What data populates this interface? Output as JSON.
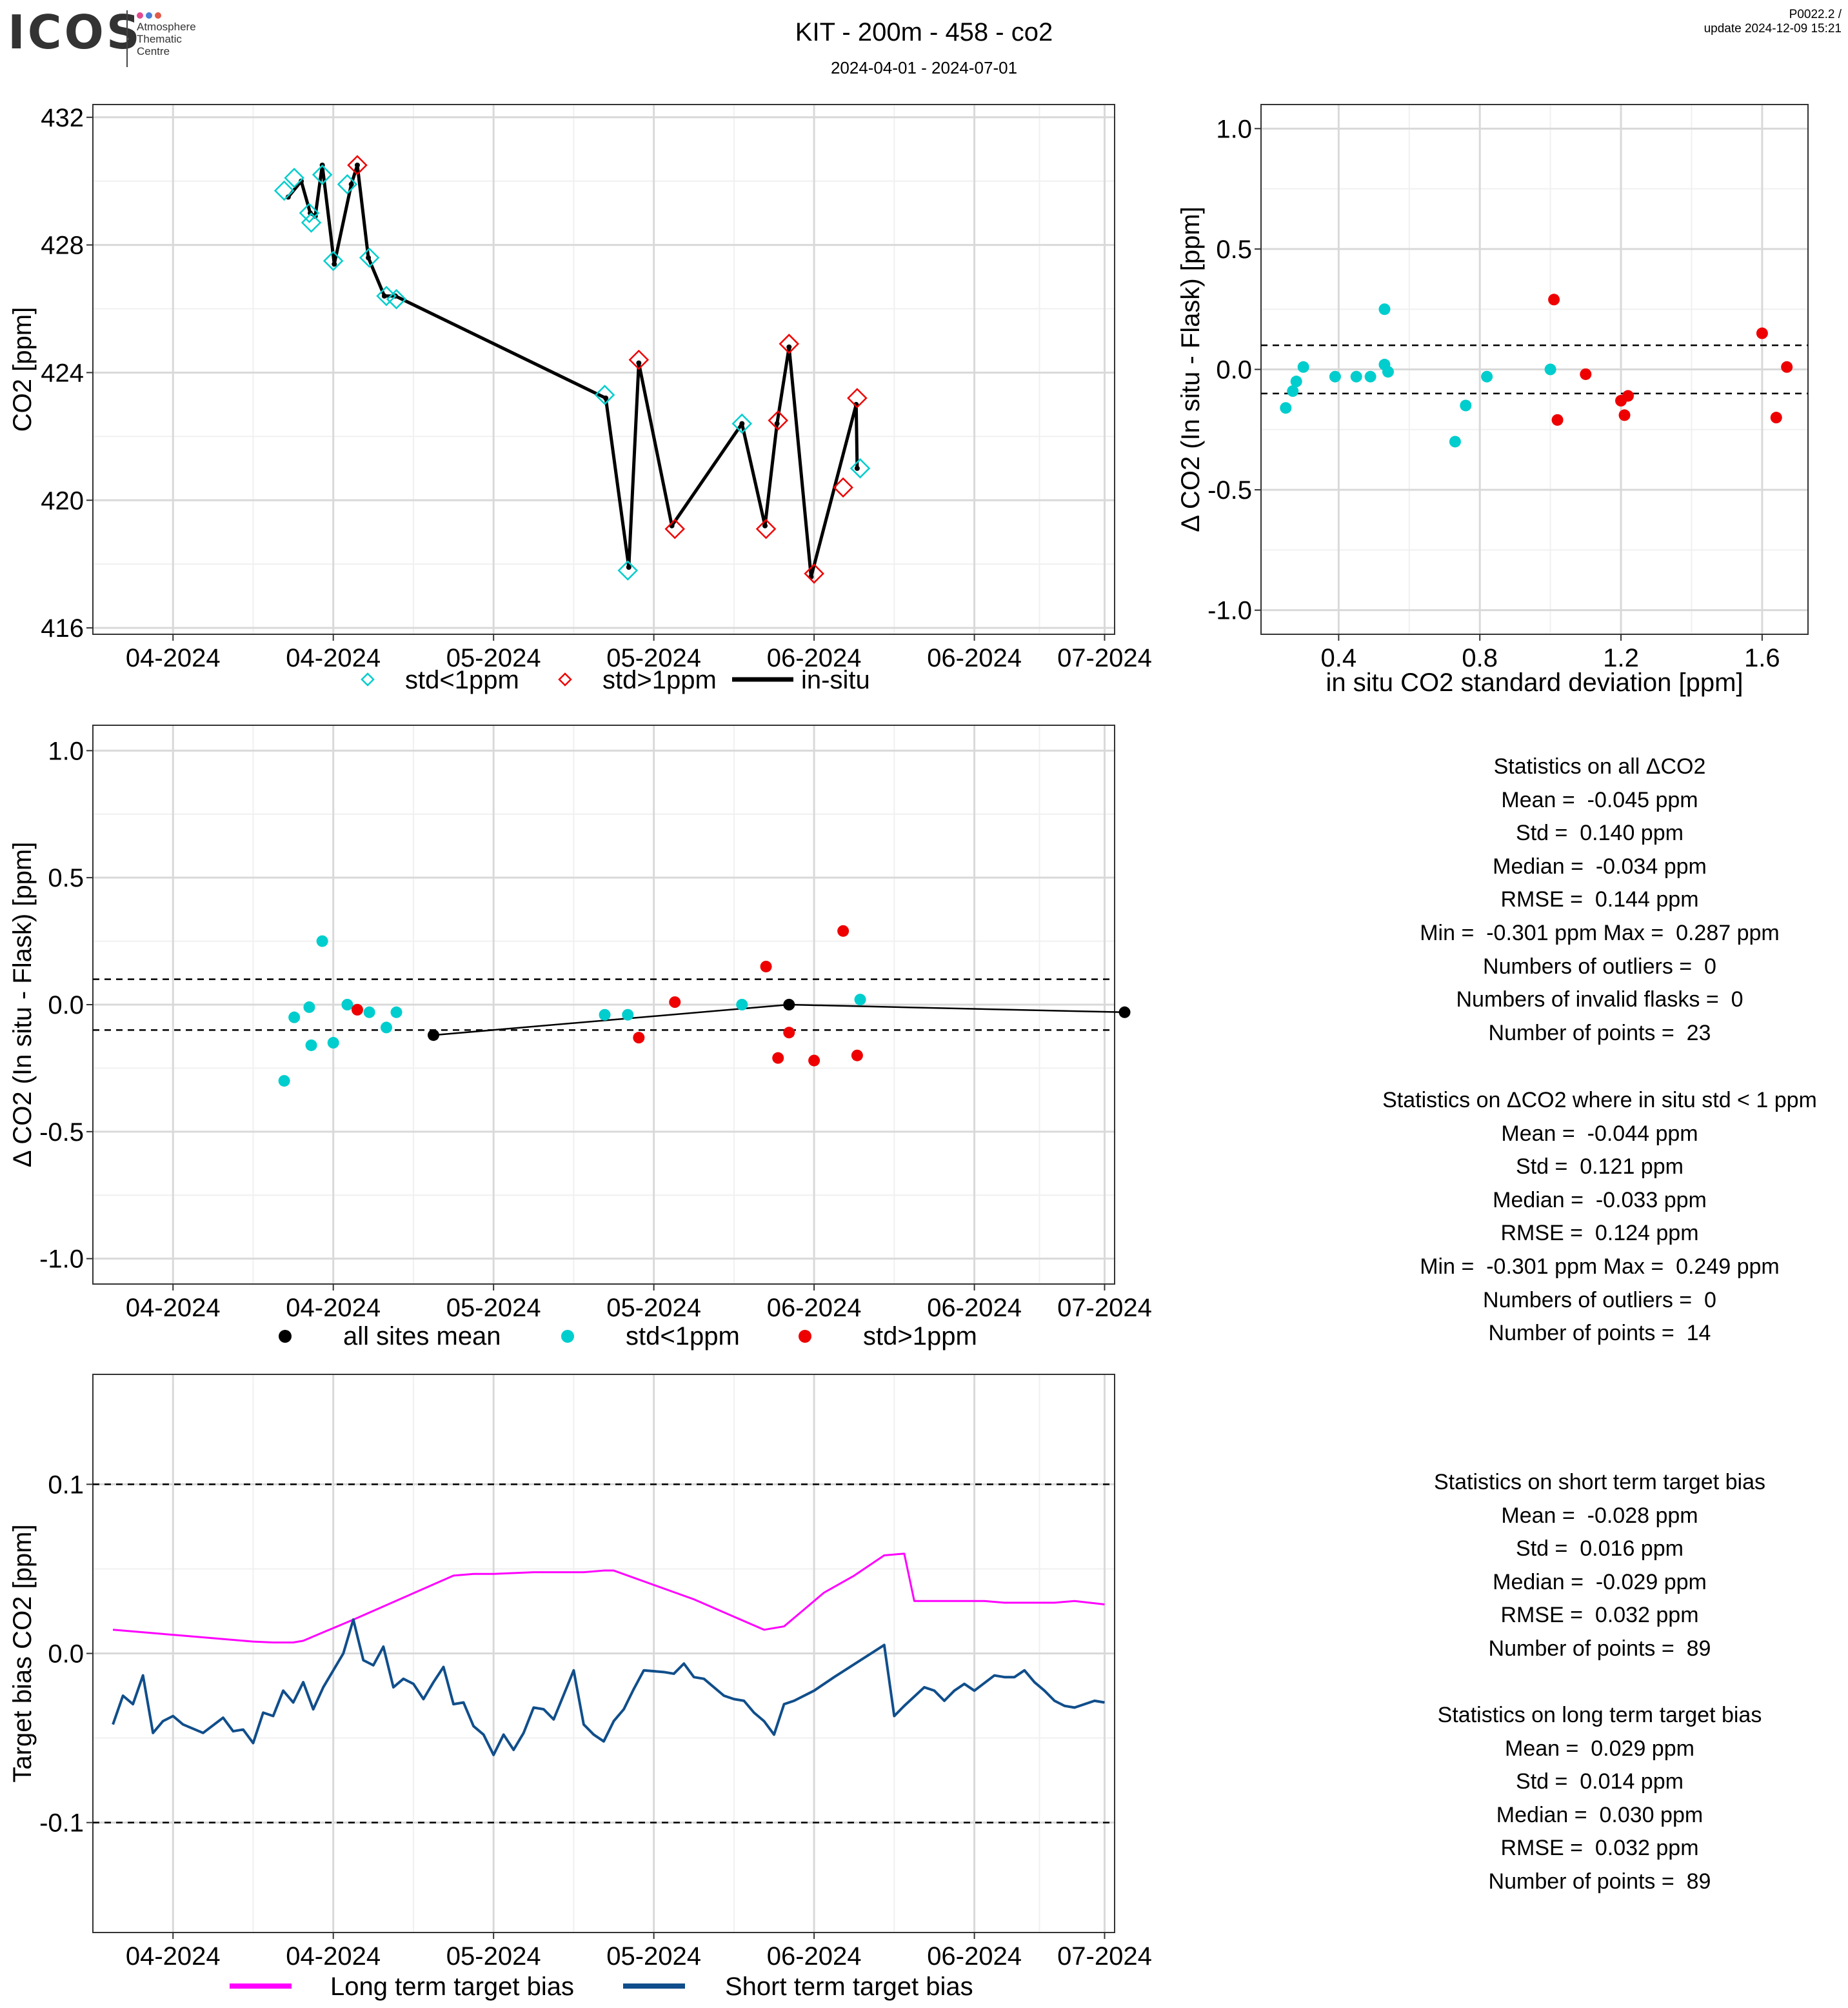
{
  "header": {
    "logo_text": "ICOS",
    "logo_subtitle": [
      "Atmosphere",
      "Thematic",
      "Centre"
    ],
    "title": "KIT - 200m - 458 - co2",
    "subtitle": "2024-04-01 - 2024-07-01",
    "version": "P0022.2 /",
    "update": "update  2024-12-09 15:21"
  },
  "colors": {
    "cyan": "#00CDCD",
    "red": "#EE0000",
    "magenta": "#FF00FF",
    "navy": "#104E8B",
    "black": "#000000",
    "grid_major": "#D9D9D9",
    "grid_minor": "#F0F0F0"
  },
  "chart_data": [
    {
      "id": "timeseries",
      "type": "line",
      "ylabel": "CO2 [ppm]",
      "xlabel": "",
      "xlim": [
        -31,
        71
      ],
      "ylim": [
        415.8,
        432.4
      ],
      "yticks": [
        416,
        420,
        424,
        428,
        432
      ],
      "xticks": [
        {
          "x": -23,
          "label": "04-2024"
        },
        {
          "x": -7,
          "label": "04-2024"
        },
        {
          "x": 9,
          "label": "05-2024"
        },
        {
          "x": 25,
          "label": "05-2024"
        },
        {
          "x": 41,
          "label": "06-2024"
        },
        {
          "x": 57,
          "label": "06-2024"
        },
        {
          "x": 70,
          "label": "07-2024"
        }
      ],
      "legend": [
        {
          "label": "std<1ppm",
          "marker": "diamond-open",
          "color": "#00CDCD"
        },
        {
          "label": "std>1ppm",
          "marker": "diamond-open",
          "color": "#EE0000"
        },
        {
          "label": "in-situ",
          "marker": "line",
          "color": "#000000"
        }
      ],
      "legend_position": "bottom",
      "insitu": {
        "x": [
          -11.5,
          -10.2,
          -9.3,
          -8.8,
          -8.1,
          -6.9,
          -5.2,
          -4.6,
          -3.5,
          -1.9,
          -0.8,
          20.2,
          22.5,
          23.5,
          26.8,
          33.8,
          36.1,
          37.3,
          38.5,
          40.7,
          45.2,
          45.3
        ],
        "y": [
          429.5,
          430.0,
          429.0,
          428.9,
          430.5,
          427.4,
          429.9,
          430.5,
          427.6,
          426.4,
          426.4,
          423.2,
          417.9,
          424.3,
          419.2,
          422.4,
          419.2,
          422.4,
          424.8,
          417.6,
          423.0,
          421.0
        ]
      },
      "series": [
        {
          "name": "std<1ppm",
          "x": [
            -11.9,
            -10.9,
            -9.4,
            -9.2,
            -8.1,
            -7.0,
            -5.6,
            -3.4,
            -1.7,
            -0.7,
            20.1,
            22.4,
            33.8,
            45.6
          ],
          "y": [
            429.7,
            430.1,
            429.0,
            428.7,
            430.2,
            427.5,
            429.9,
            427.6,
            426.4,
            426.3,
            423.3,
            417.8,
            422.4,
            421.0
          ]
        },
        {
          "name": "std>1ppm",
          "x": [
            -4.6,
            23.5,
            27.1,
            36.2,
            37.4,
            38.5,
            41.0,
            43.9,
            45.3
          ],
          "y": [
            430.5,
            424.4,
            419.1,
            419.1,
            422.5,
            424.9,
            417.7,
            420.4,
            423.2
          ]
        }
      ]
    },
    {
      "id": "std_scatter",
      "type": "scatter",
      "xlabel": "in situ CO2 standard deviation [ppm]",
      "ylabel": "Δ CO2 (In situ - Flask) [ppm]",
      "xlim": [
        0.18,
        1.73
      ],
      "ylim": [
        -1.1,
        1.1
      ],
      "xticks": [
        0.4,
        0.8,
        1.2,
        1.6
      ],
      "yticks": [
        -1.0,
        -0.5,
        0.0,
        0.5,
        1.0
      ],
      "hlines": [
        0.1,
        -0.1
      ],
      "series": [
        {
          "name": "std<1ppm",
          "x": [
            0.25,
            0.27,
            0.28,
            0.3,
            0.39,
            0.45,
            0.49,
            0.53,
            0.53,
            0.54,
            0.73,
            0.76,
            0.82,
            1.0
          ],
          "y": [
            -0.16,
            -0.09,
            -0.05,
            0.01,
            -0.03,
            -0.03,
            -0.03,
            0.02,
            0.25,
            -0.01,
            -0.3,
            -0.15,
            -0.03,
            0.0
          ]
        },
        {
          "name": "std>1ppm",
          "x": [
            1.01,
            1.02,
            1.1,
            1.2,
            1.21,
            1.22,
            1.6,
            1.64,
            1.67
          ],
          "y": [
            0.29,
            -0.21,
            -0.02,
            -0.13,
            -0.19,
            -0.11,
            0.15,
            -0.2,
            0.01
          ]
        }
      ]
    },
    {
      "id": "delta_time",
      "type": "scatter",
      "ylabel": "Δ CO2 (In situ - Flask) [ppm]",
      "xlabel": "",
      "xlim": [
        -31,
        71
      ],
      "ylim": [
        -1.1,
        1.1
      ],
      "yticks": [
        -1.0,
        -0.5,
        0.0,
        0.5,
        1.0
      ],
      "hlines": [
        0.1,
        -0.1
      ],
      "xticks": [
        {
          "x": -23,
          "label": "04-2024"
        },
        {
          "x": -7,
          "label": "04-2024"
        },
        {
          "x": 9,
          "label": "05-2024"
        },
        {
          "x": 25,
          "label": "05-2024"
        },
        {
          "x": 41,
          "label": "06-2024"
        },
        {
          "x": 57,
          "label": "06-2024"
        },
        {
          "x": 70,
          "label": "07-2024"
        }
      ],
      "legend": [
        {
          "label": "all sites mean",
          "marker": "dot",
          "color": "#000000"
        },
        {
          "label": "std<1ppm",
          "marker": "dot",
          "color": "#00CDCD"
        },
        {
          "label": "std>1ppm",
          "marker": "dot",
          "color": "#EE0000"
        }
      ],
      "legend_position": "bottom",
      "series": [
        {
          "name": "all sites mean",
          "x": [
            3.0,
            38.5,
            72.0
          ],
          "y": [
            -0.12,
            0.0,
            -0.03
          ]
        },
        {
          "name": "std<1ppm",
          "x": [
            -11.9,
            -10.9,
            -9.4,
            -9.2,
            -8.1,
            -7.0,
            -5.6,
            -3.4,
            -1.7,
            -0.7,
            20.1,
            22.4,
            33.8,
            45.6
          ],
          "y": [
            -0.3,
            -0.05,
            -0.01,
            -0.16,
            0.25,
            -0.15,
            0.0,
            -0.03,
            -0.09,
            -0.03,
            -0.04,
            -0.04,
            0.0,
            0.02
          ]
        },
        {
          "name": "std>1ppm",
          "x": [
            -4.6,
            23.5,
            27.1,
            36.2,
            37.4,
            38.5,
            41.0,
            43.9,
            45.3
          ],
          "y": [
            -0.02,
            -0.13,
            0.01,
            0.15,
            -0.21,
            -0.11,
            -0.22,
            0.29,
            -0.2
          ]
        }
      ]
    },
    {
      "id": "target_bias",
      "type": "line",
      "ylabel": "Target bias CO2 [ppm]",
      "xlabel": "",
      "xlim": [
        -31,
        71
      ],
      "ylim": [
        -0.165,
        0.165
      ],
      "yticks": [
        -0.1,
        0.0,
        0.1
      ],
      "hlines": [
        0.1,
        -0.1
      ],
      "xticks": [
        {
          "x": -23,
          "label": "04-2024"
        },
        {
          "x": -7,
          "label": "04-2024"
        },
        {
          "x": 9,
          "label": "05-2024"
        },
        {
          "x": 25,
          "label": "05-2024"
        },
        {
          "x": 41,
          "label": "06-2024"
        },
        {
          "x": 57,
          "label": "06-2024"
        },
        {
          "x": 70,
          "label": "07-2024"
        }
      ],
      "legend": [
        {
          "label": "Long term target bias",
          "marker": "line",
          "color": "#FF00FF"
        },
        {
          "label": "Short term target bias",
          "marker": "line",
          "color": "#104E8B"
        }
      ],
      "legend_position": "bottom",
      "series": [
        {
          "name": "Long term target bias",
          "x": [
            -29,
            -27,
            -25,
            -23,
            -21,
            -19,
            -17,
            -15,
            -13,
            -11,
            -10,
            -9,
            -5,
            0,
            5,
            7,
            9,
            13,
            18,
            20,
            21,
            29,
            36,
            38,
            40,
            42,
            45,
            48,
            50,
            51,
            52,
            55,
            58,
            60,
            62,
            65,
            67,
            70
          ],
          "y": [
            0.014,
            0.013,
            0.012,
            0.011,
            0.01,
            0.009,
            0.008,
            0.007,
            0.0065,
            0.0065,
            0.0075,
            0.01,
            0.02,
            0.033,
            0.046,
            0.047,
            0.047,
            0.048,
            0.048,
            0.049,
            0.049,
            0.032,
            0.014,
            0.016,
            0.026,
            0.036,
            0.046,
            0.058,
            0.059,
            0.031,
            0.031,
            0.031,
            0.031,
            0.03,
            0.03,
            0.03,
            0.031,
            0.029
          ]
        },
        {
          "name": "Short term target bias",
          "x": [
            -29,
            -28,
            -27,
            -26,
            -25,
            -24,
            -23,
            -22,
            -20,
            -18,
            -17,
            -16,
            -15,
            -14,
            -13,
            -12,
            -11,
            -10,
            -9,
            -8,
            -6,
            -5,
            -4,
            -3,
            -2,
            -1,
            0,
            1,
            2,
            3,
            4,
            5,
            6,
            7,
            8,
            9,
            10,
            11,
            12,
            13,
            14,
            15,
            17,
            18,
            19,
            20,
            21,
            22,
            23,
            24,
            26,
            27,
            28,
            29,
            30,
            31,
            32,
            33,
            34,
            35,
            36,
            37,
            38,
            39,
            41,
            42,
            43,
            48,
            49,
            50,
            52,
            53,
            54,
            55,
            56,
            57,
            59,
            60,
            61,
            62,
            63,
            64,
            65,
            66,
            67,
            69,
            70
          ],
          "y": [
            -0.042,
            -0.025,
            -0.03,
            -0.013,
            -0.047,
            -0.04,
            -0.037,
            -0.042,
            -0.047,
            -0.038,
            -0.046,
            -0.045,
            -0.053,
            -0.035,
            -0.037,
            -0.022,
            -0.029,
            -0.017,
            -0.033,
            -0.02,
            0.0,
            0.02,
            -0.004,
            -0.007,
            0.004,
            -0.02,
            -0.015,
            -0.018,
            -0.027,
            -0.017,
            -0.008,
            -0.03,
            -0.029,
            -0.043,
            -0.048,
            -0.06,
            -0.048,
            -0.057,
            -0.047,
            -0.032,
            -0.033,
            -0.039,
            -0.01,
            -0.042,
            -0.048,
            -0.052,
            -0.04,
            -0.033,
            -0.021,
            -0.01,
            -0.011,
            -0.012,
            -0.006,
            -0.014,
            -0.015,
            -0.02,
            -0.025,
            -0.027,
            -0.028,
            -0.035,
            -0.04,
            -0.048,
            -0.03,
            -0.028,
            -0.022,
            -0.018,
            -0.014,
            0.005,
            -0.037,
            -0.031,
            -0.02,
            -0.022,
            -0.028,
            -0.022,
            -0.018,
            -0.022,
            -0.013,
            -0.014,
            -0.014,
            -0.01,
            -0.017,
            -0.022,
            -0.028,
            -0.031,
            -0.032,
            -0.028,
            -0.029
          ]
        }
      ]
    }
  ],
  "stats_all": {
    "title": "Statistics on all ΔCO2",
    "mean": "Mean =  -0.045 ppm",
    "std": "Std =  0.140 ppm",
    "median": "Median =  -0.034 ppm",
    "rmse": "RMSE =  0.144 ppm",
    "minmax": "Min =  -0.301 ppm Max =  0.287 ppm",
    "outliers": "Numbers of outliers =  0",
    "invalid": "Numbers of invalid flasks =  0",
    "points": "Number of points =  23"
  },
  "stats_lowstd": {
    "title": "Statistics on ΔCO2 where in situ std < 1 ppm",
    "mean": "Mean =  -0.044 ppm",
    "std": "Std =  0.121 ppm",
    "median": "Median =  -0.033 ppm",
    "rmse": "RMSE =  0.124 ppm",
    "minmax": "Min =  -0.301 ppm Max =  0.249 ppm",
    "outliers": "Numbers of outliers =  0",
    "points": "Number of points =  14"
  },
  "stats_short": {
    "title": "Statistics on short term target bias",
    "mean": "Mean =  -0.028 ppm",
    "std": "Std =  0.016 ppm",
    "median": "Median =  -0.029 ppm",
    "rmse": "RMSE =  0.032 ppm",
    "points": "Number of points =  89"
  },
  "stats_long": {
    "title": "Statistics on long term target bias",
    "mean": "Mean =  0.029 ppm",
    "std": "Std =  0.014 ppm",
    "median": "Median =  0.030 ppm",
    "rmse": "RMSE =  0.032 ppm",
    "points": "Number of points =  89"
  }
}
